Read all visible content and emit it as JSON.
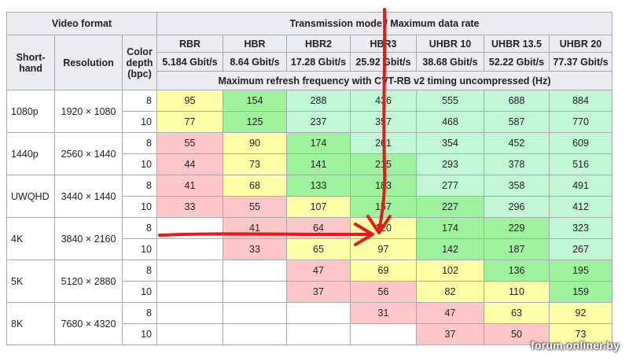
{
  "header": {
    "video_format": "Video format",
    "transmission": "Transmission mode / Maximum data rate",
    "shorthand": "Short-hand",
    "resolution": "Resolution",
    "color_depth": "Color depth (bpc)",
    "modes": [
      "RBR",
      "HBR",
      "HBR2",
      "HBR3",
      "UHBR 10",
      "UHBR 13.5",
      "UHBR 20"
    ],
    "rates": [
      "5.184 Gbit/s",
      "8.64 Gbit/s",
      "17.28 Gbit/s",
      "25.92 Gbit/s",
      "38.68 Gbit/s",
      "52.22 Gbit/s",
      "77.37 Gbit/s"
    ],
    "subtitle": "Maximum refresh frequency with CVT-RB v2 timing uncompressed (Hz)"
  },
  "formats": [
    {
      "name": "1080p",
      "resolution": "1920 × 1080",
      "rows": [
        {
          "bpc": "8",
          "values": [
            "95",
            "154",
            "288",
            "436",
            "555",
            "688",
            "884"
          ],
          "tiers": [
            2,
            3,
            4,
            4,
            4,
            4,
            4
          ]
        },
        {
          "bpc": "10",
          "values": [
            "77",
            "125",
            "237",
            "357",
            "468",
            "587",
            "770"
          ],
          "tiers": [
            2,
            3,
            4,
            4,
            4,
            4,
            4
          ]
        }
      ]
    },
    {
      "name": "1440p",
      "resolution": "2560 × 1440",
      "rows": [
        {
          "bpc": "8",
          "values": [
            "55",
            "90",
            "174",
            "261",
            "354",
            "452",
            "609"
          ],
          "tiers": [
            1,
            2,
            3,
            4,
            4,
            4,
            4
          ]
        },
        {
          "bpc": "10",
          "values": [
            "44",
            "73",
            "141",
            "215",
            "293",
            "378",
            "516"
          ],
          "tiers": [
            1,
            2,
            3,
            3,
            4,
            4,
            4
          ]
        }
      ]
    },
    {
      "name": "UWQHD",
      "resolution": "3440 × 1440",
      "rows": [
        {
          "bpc": "8",
          "values": [
            "41",
            "68",
            "133",
            "183",
            "277",
            "358",
            "491"
          ],
          "tiers": [
            1,
            2,
            3,
            3,
            4,
            4,
            4
          ]
        },
        {
          "bpc": "10",
          "values": [
            "33",
            "55",
            "107",
            "157",
            "227",
            "296",
            "412"
          ],
          "tiers": [
            1,
            1,
            2,
            3,
            3,
            4,
            4
          ]
        }
      ]
    },
    {
      "name": "4K",
      "resolution": "3840 × 2160",
      "rows": [
        {
          "bpc": "8",
          "values": [
            "",
            "41",
            "64",
            "120",
            "174",
            "229",
            "323"
          ],
          "tiers": [
            0,
            1,
            1,
            2,
            3,
            3,
            4
          ]
        },
        {
          "bpc": "10",
          "values": [
            "",
            "33",
            "65",
            "97",
            "142",
            "187",
            "267"
          ],
          "tiers": [
            0,
            1,
            2,
            2,
            3,
            3,
            4
          ]
        }
      ]
    },
    {
      "name": "5K",
      "resolution": "5120 × 2880",
      "rows": [
        {
          "bpc": "8",
          "values": [
            "",
            "",
            "47",
            "69",
            "102",
            "136",
            "195"
          ],
          "tiers": [
            0,
            0,
            1,
            2,
            2,
            3,
            3
          ]
        },
        {
          "bpc": "10",
          "values": [
            "",
            "",
            "37",
            "56",
            "82",
            "110",
            "159"
          ],
          "tiers": [
            0,
            0,
            1,
            1,
            2,
            2,
            3
          ]
        }
      ]
    },
    {
      "name": "8K",
      "resolution": "7680 × 4320",
      "rows": [
        {
          "bpc": "8",
          "values": [
            "",
            "",
            "",
            "31",
            "47",
            "63",
            "92"
          ],
          "tiers": [
            0,
            0,
            0,
            1,
            1,
            2,
            2
          ]
        },
        {
          "bpc": "10",
          "values": [
            "",
            "",
            "",
            "",
            "37",
            "50",
            "73"
          ],
          "tiers": [
            0,
            0,
            0,
            0,
            1,
            1,
            2
          ]
        }
      ]
    }
  ],
  "tier_colors": [
    "#ffffff",
    "#ffc7c7",
    "#ffffa8",
    "#9ef29e",
    "#c2f7d6"
  ],
  "annotation_color": "#e8191b",
  "watermark": "forum.onliner.by"
}
